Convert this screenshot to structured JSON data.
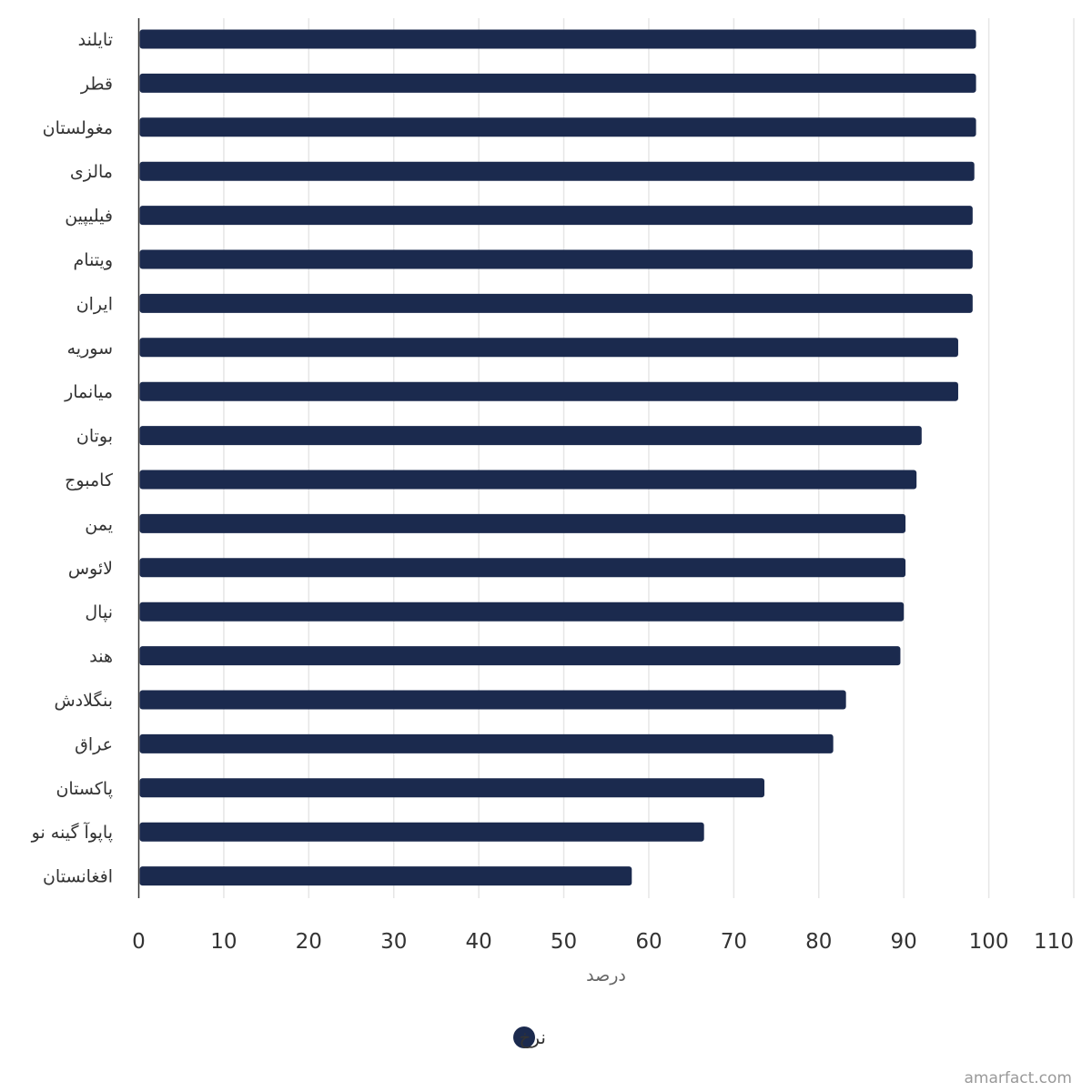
{
  "chart_data": {
    "type": "bar",
    "orientation": "horizontal",
    "categories": [
      "تایلند",
      "قطر",
      "مغولستان",
      "مالزی",
      "فیلیپین",
      "ویتنام",
      "ایران",
      "سوریه",
      "میانمار",
      "بوتان",
      "کامبوج",
      "یمن",
      "لائوس",
      "نپال",
      "هند",
      "بنگلادش",
      "عراق",
      "پاکستان",
      "پاپوآ گینه نو",
      "افغانستان"
    ],
    "series": [
      {
        "name": "نرخ",
        "values": [
          98.5,
          98.5,
          98.5,
          98.3,
          98.1,
          98.1,
          98.1,
          96.4,
          96.4,
          92.1,
          91.5,
          90.2,
          90.2,
          90.0,
          89.6,
          83.2,
          81.7,
          73.6,
          66.5,
          58.0
        ]
      }
    ],
    "xlabel": "درصد",
    "ylabel": "",
    "xlim": [
      0,
      110
    ],
    "xticks": [
      "0",
      "10",
      "20",
      "30",
      "40",
      "50",
      "60",
      "70",
      "80",
      "90",
      "100",
      "110"
    ],
    "grid": true,
    "legend_position": "bottom-center"
  },
  "colors": {
    "bar": "#1b2a4e",
    "grid": "#e6e6e6",
    "axis": "#333333"
  },
  "credit": "amarfact.com"
}
